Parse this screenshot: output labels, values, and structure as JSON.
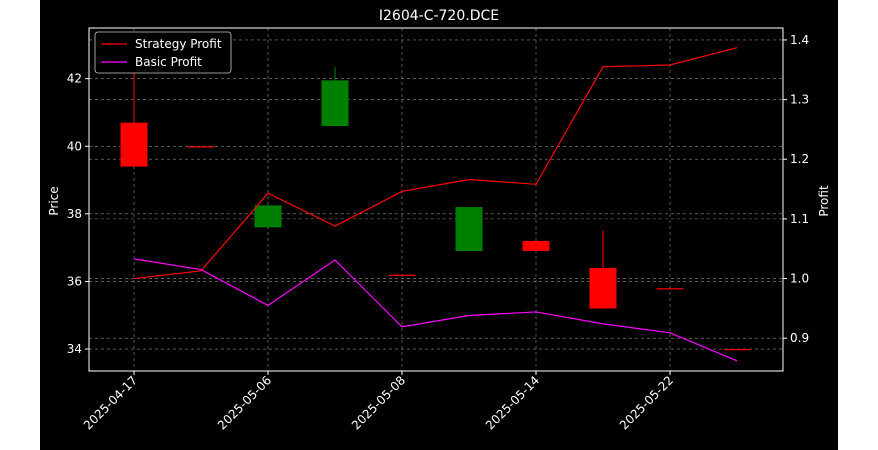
{
  "chart_data": {
    "type": "candlestick",
    "title": "I2604-C-720.DCE",
    "ylabel_left": "Price",
    "ylabel_right": "Profit",
    "xlabel": "",
    "ylim_left": [
      33.35,
      43.5
    ],
    "ylim_right": [
      0.845,
      1.42
    ],
    "yticks_left": [
      34,
      36,
      38,
      40,
      42
    ],
    "yticks_right": [
      0.9,
      1.0,
      1.1,
      1.2,
      1.3,
      1.4
    ],
    "x_tick_labels": [
      "2025-04-17",
      "2025-05-06",
      "2025-05-08",
      "2025-05-14",
      "2025-05-22"
    ],
    "x_tick_indices": [
      0,
      2,
      4,
      6,
      8
    ],
    "grid": true,
    "legend_position": "top-left",
    "colors": {
      "background": "#000000",
      "axes": "#ffffff",
      "grid": "#8a8a8a",
      "up": "#008000",
      "down": "#ff0000",
      "strategy_line": "#ff0000",
      "basic_line": "#ff00ff"
    },
    "candles": [
      {
        "index": 0,
        "open": 40.7,
        "high": 42.4,
        "low": 39.4,
        "close": 39.4
      },
      {
        "index": 1,
        "open": 40.0,
        "high": 40.0,
        "low": 40.0,
        "close": 40.0
      },
      {
        "index": 2,
        "open": 37.6,
        "high": 38.25,
        "low": 37.6,
        "close": 38.25
      },
      {
        "index": 3,
        "open": 40.6,
        "high": 42.35,
        "low": 40.6,
        "close": 41.95
      },
      {
        "index": 4,
        "open": 36.2,
        "high": 36.2,
        "low": 36.2,
        "close": 36.2
      },
      {
        "index": 5,
        "open": 36.9,
        "high": 38.2,
        "low": 36.9,
        "close": 38.2
      },
      {
        "index": 6,
        "open": 37.2,
        "high": 37.2,
        "low": 36.9,
        "close": 36.9
      },
      {
        "index": 7,
        "open": 36.4,
        "high": 37.5,
        "low": 35.2,
        "close": 35.2
      },
      {
        "index": 8,
        "open": 35.8,
        "high": 35.8,
        "low": 35.8,
        "close": 35.8
      },
      {
        "index": 9,
        "open": 34.0,
        "high": 34.0,
        "low": 34.0,
        "close": 34.0
      }
    ],
    "series": [
      {
        "name": "Strategy Profit",
        "axis": "right",
        "values": [
          1.0,
          1.013,
          1.143,
          1.088,
          1.146,
          1.166,
          1.158,
          1.355,
          1.358,
          1.387
        ]
      },
      {
        "name": "Basic Profit",
        "axis": "right",
        "values": [
          1.033,
          1.015,
          0.955,
          1.031,
          0.919,
          0.938,
          0.944,
          0.924,
          0.909,
          0.862
        ]
      }
    ]
  }
}
